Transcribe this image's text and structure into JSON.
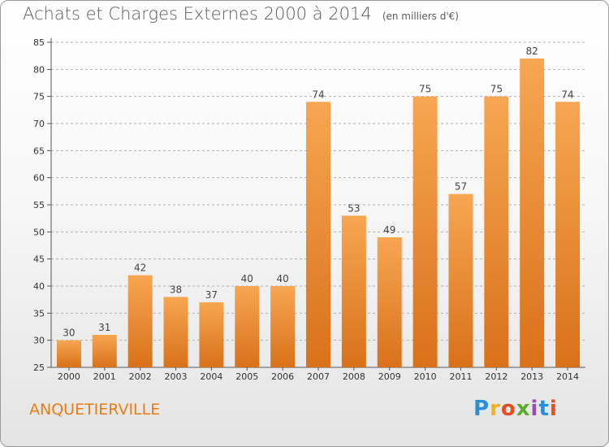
{
  "header": {
    "title": "Achats et Charges Externes 2000 à 2014",
    "unit": "(en milliers d'€)"
  },
  "footer": {
    "commune": "ANQUETIERVILLE",
    "brand": [
      "P",
      "r",
      "o",
      "x",
      "i",
      "t",
      "i"
    ]
  },
  "colors": {
    "bar_light": "#f7a652",
    "bar_dark": "#d9711a",
    "commune_text": "#e87d16",
    "grid": "#b0b0b0"
  },
  "chart_data": {
    "type": "bar",
    "title": "Achats et Charges Externes 2000 à 2014",
    "subtitle": "(en milliers d'€)",
    "categories": [
      "2000",
      "2001",
      "2002",
      "2003",
      "2004",
      "2005",
      "2006",
      "2007",
      "2008",
      "2009",
      "2010",
      "2011",
      "2012",
      "2013",
      "2014"
    ],
    "values": [
      30,
      31,
      42,
      38,
      37,
      40,
      40,
      74,
      53,
      49,
      75,
      57,
      75,
      82,
      74
    ],
    "ylim": [
      25,
      85
    ],
    "yticks": [
      25,
      30,
      35,
      40,
      45,
      50,
      55,
      60,
      65,
      70,
      75,
      80,
      85
    ],
    "grid": "horizontal dashed",
    "legend": "none"
  }
}
